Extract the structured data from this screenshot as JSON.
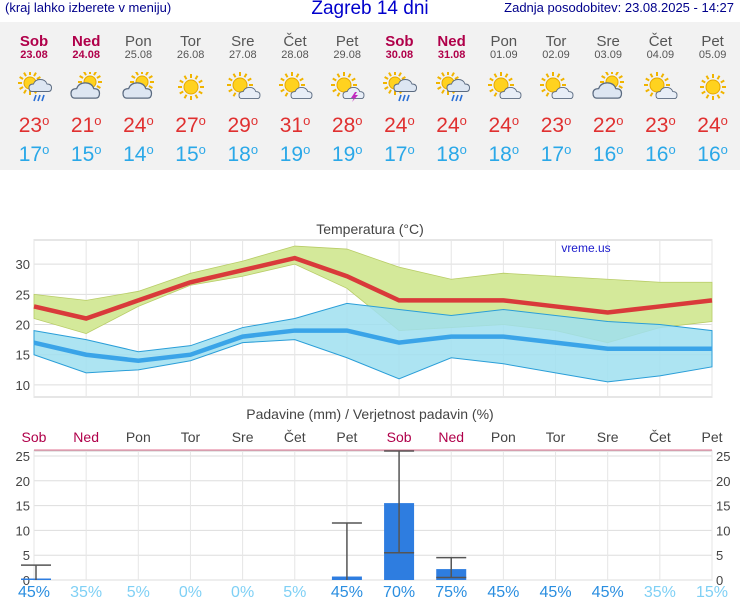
{
  "header": {
    "left_text": "(kraj lahko izberete v meniju)",
    "title": "Zagreb 14 dni",
    "right_text": "Zadnja posodobitev: 23.08.2025 - 14:27"
  },
  "days": [
    {
      "name": "Sob",
      "date": "23.08",
      "weekend": true,
      "icon": "rain-sun-icon",
      "tmax": "23",
      "tmin": "17"
    },
    {
      "name": "Ned",
      "date": "24.08",
      "weekend": true,
      "icon": "cloud-sun-icon",
      "tmax": "21",
      "tmin": "15"
    },
    {
      "name": "Pon",
      "date": "25.08",
      "weekend": false,
      "icon": "cloud-sun-icon",
      "tmax": "24",
      "tmin": "14"
    },
    {
      "name": "Tor",
      "date": "26.08",
      "weekend": false,
      "icon": "sun-icon",
      "tmax": "27",
      "tmin": "15"
    },
    {
      "name": "Sre",
      "date": "27.08",
      "weekend": false,
      "icon": "partly-sunny-icon",
      "tmax": "29",
      "tmin": "18"
    },
    {
      "name": "Čet",
      "date": "28.08",
      "weekend": false,
      "icon": "partly-sunny-icon",
      "tmax": "31",
      "tmin": "19"
    },
    {
      "name": "Pet",
      "date": "29.08",
      "weekend": false,
      "icon": "thunder-sun-icon",
      "tmax": "28",
      "tmin": "19"
    },
    {
      "name": "Sob",
      "date": "30.08",
      "weekend": true,
      "icon": "rain-sun-icon",
      "tmax": "24",
      "tmin": "17"
    },
    {
      "name": "Ned",
      "date": "31.08",
      "weekend": true,
      "icon": "rain-sun-icon",
      "tmax": "24",
      "tmin": "18"
    },
    {
      "name": "Pon",
      "date": "01.09",
      "weekend": false,
      "icon": "partly-sunny-icon",
      "tmax": "24",
      "tmin": "18"
    },
    {
      "name": "Tor",
      "date": "02.09",
      "weekend": false,
      "icon": "partly-sunny-icon",
      "tmax": "23",
      "tmin": "17"
    },
    {
      "name": "Sre",
      "date": "03.09",
      "weekend": false,
      "icon": "cloud-sun-icon",
      "tmax": "22",
      "tmin": "16"
    },
    {
      "name": "Čet",
      "date": "04.09",
      "weekend": false,
      "icon": "partly-sunny-icon",
      "tmax": "23",
      "tmin": "16"
    },
    {
      "name": "Pet",
      "date": "05.09",
      "weekend": false,
      "icon": "sun-icon",
      "tmax": "24",
      "tmin": "16"
    }
  ],
  "chart_data": [
    {
      "type": "line",
      "title": "Temperatura (°C)",
      "watermark": "vreme.us",
      "ylim": [
        8,
        34
      ],
      "yticks": [
        10,
        15,
        20,
        25,
        30
      ],
      "categories": [
        "Sob",
        "Ned",
        "Pon",
        "Tor",
        "Sre",
        "Čet",
        "Pet",
        "Sob",
        "Ned",
        "Pon",
        "Tor",
        "Sre",
        "Čet",
        "Pet"
      ],
      "series": [
        {
          "role": "max",
          "color": "#d93a3a",
          "values": [
            23,
            21,
            24,
            27,
            29,
            31,
            28,
            24,
            24,
            24,
            23,
            22,
            23,
            24
          ],
          "band_low": [
            21,
            18.5,
            23,
            26.5,
            28,
            30,
            26,
            19,
            19.5,
            20,
            19,
            17,
            19.5,
            20.5
          ],
          "band_high": [
            25,
            24,
            25.5,
            28.5,
            30.5,
            33,
            32.5,
            29.5,
            27.5,
            28.5,
            28,
            27.5,
            27,
            27
          ]
        },
        {
          "role": "min",
          "color": "#3aa4e8",
          "values": [
            17,
            15,
            14,
            15,
            18,
            19,
            19,
            17,
            18,
            18,
            17,
            16,
            16,
            16
          ],
          "band_low": [
            15,
            12,
            12.5,
            14,
            17,
            17.5,
            14.5,
            11,
            14.5,
            13.5,
            12,
            10.5,
            11.5,
            13
          ],
          "band_high": [
            19,
            17.5,
            15.5,
            16.5,
            19.5,
            21,
            23.5,
            22.5,
            21.5,
            22.5,
            21.5,
            20.5,
            20,
            19
          ]
        }
      ],
      "colors": {
        "max_band": "#d4e99a",
        "min_band": "#9fdff0",
        "overlap": "#7ec889"
      }
    },
    {
      "type": "bar",
      "title": "Padavine (mm) / Verjetnost padavin (%)",
      "ylim": [
        0,
        26
      ],
      "yticks": [
        0,
        5,
        10,
        15,
        20,
        25
      ],
      "categories": [
        "Sob",
        "Ned",
        "Pon",
        "Tor",
        "Sre",
        "Čet",
        "Pet",
        "Sob",
        "Ned",
        "Pon",
        "Tor",
        "Sre",
        "Čet",
        "Pet"
      ],
      "values": [
        0.3,
        0,
        0,
        0,
        0,
        0,
        0.7,
        15.5,
        2.2,
        0,
        0,
        0,
        0,
        0
      ],
      "error_low": [
        0,
        0,
        0,
        0,
        0,
        0,
        0,
        5.5,
        0.5,
        0,
        0,
        0,
        0,
        0
      ],
      "error_high": [
        3,
        0,
        0,
        0,
        0,
        0,
        11.5,
        26,
        4.5,
        0,
        0,
        0,
        0,
        0
      ],
      "probability": [
        "45%",
        "35%",
        "5%",
        "0%",
        "0%",
        "5%",
        "45%",
        "70%",
        "75%",
        "45%",
        "45%",
        "45%",
        "35%",
        "15%"
      ],
      "bar_color": "#2e7de0"
    }
  ]
}
